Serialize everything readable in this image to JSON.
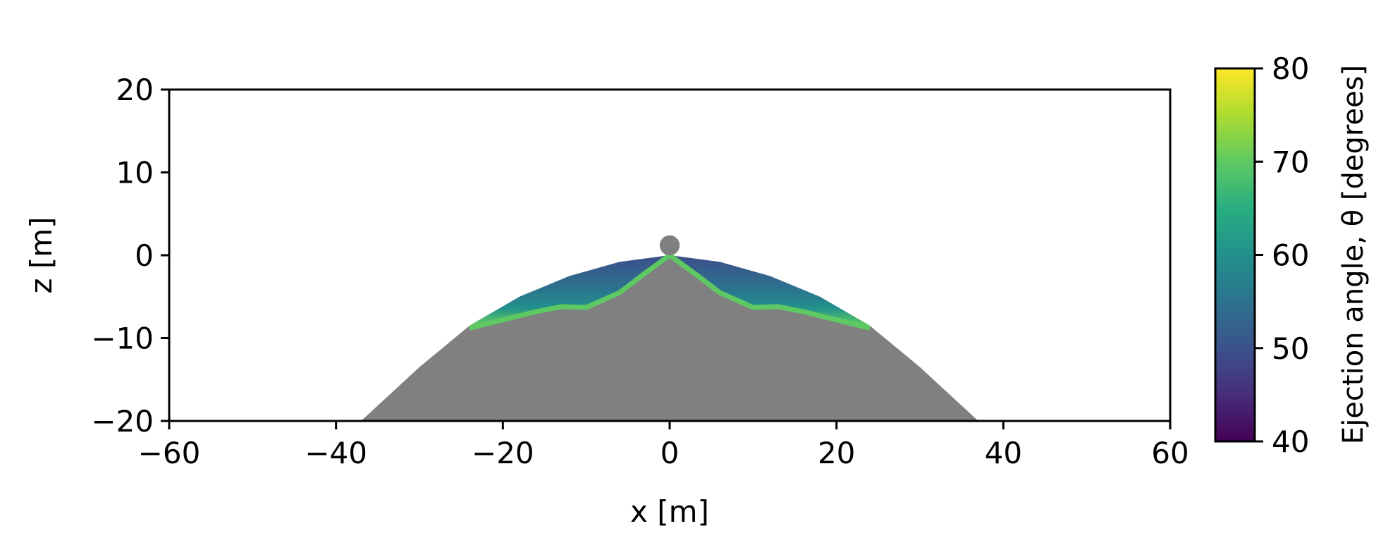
{
  "chart_data": {
    "type": "heatmap",
    "title": "",
    "xlabel": "x [m]",
    "ylabel": "z [m]",
    "xlim": [
      -60,
      60
    ],
    "ylim": [
      -20,
      20
    ],
    "xticks": [
      -60,
      -40,
      -20,
      0,
      20,
      40,
      60
    ],
    "yticks": [
      -20,
      -10,
      0,
      10,
      20
    ],
    "xtick_labels": [
      "−60",
      "−40",
      "−20",
      "0",
      "20",
      "40",
      "60"
    ],
    "ytick_labels": [
      "−20",
      "−10",
      "0",
      "10",
      "20"
    ],
    "grid": false,
    "colorbar": {
      "label": "Ejection angle, θ [degrees]",
      "colormap": "viridis",
      "range": [
        40,
        80
      ],
      "ticks": [
        40,
        50,
        60,
        70,
        80
      ],
      "tick_labels": [
        "40",
        "50",
        "60",
        "70",
        "80"
      ]
    },
    "crater_body": {
      "color": "#808080",
      "outline": [
        [
          -37,
          -20
        ],
        [
          -30,
          -13.5
        ],
        [
          -24,
          -8.5
        ],
        [
          -18,
          -5
        ],
        [
          -12,
          -2.5
        ],
        [
          -6,
          -0.8
        ],
        [
          0,
          0
        ],
        [
          6,
          -0.8
        ],
        [
          12,
          -2.5
        ],
        [
          18,
          -5
        ],
        [
          24,
          -8.5
        ],
        [
          30,
          -13.5
        ],
        [
          37,
          -20
        ]
      ]
    },
    "impactor": {
      "x": 0,
      "z": 1.2,
      "radius": 1.2,
      "color": "#808080"
    },
    "ejecta_curtain": {
      "outer_edge": [
        [
          -24,
          -8.5
        ],
        [
          -18,
          -5
        ],
        [
          -12,
          -2.5
        ],
        [
          -6,
          -0.8
        ],
        [
          0,
          0
        ],
        [
          6,
          -0.8
        ],
        [
          12,
          -2.5
        ],
        [
          18,
          -5
        ],
        [
          24,
          -8.5
        ]
      ],
      "inner_edge": [
        [
          -24,
          -8.8
        ],
        [
          -20,
          -7.8
        ],
        [
          -16,
          -6.8
        ],
        [
          -13,
          -6.2
        ],
        [
          -10,
          -6.3
        ],
        [
          -6,
          -4.5
        ],
        [
          -3,
          -2.2
        ],
        [
          0,
          0
        ],
        [
          3,
          -2.2
        ],
        [
          6,
          -4.5
        ],
        [
          10,
          -6.3
        ],
        [
          13,
          -6.2
        ],
        [
          16,
          -6.8
        ],
        [
          20,
          -7.8
        ],
        [
          24,
          -8.8
        ]
      ],
      "angle_outer_deg": 50,
      "angle_inner_deg": 70
    }
  }
}
